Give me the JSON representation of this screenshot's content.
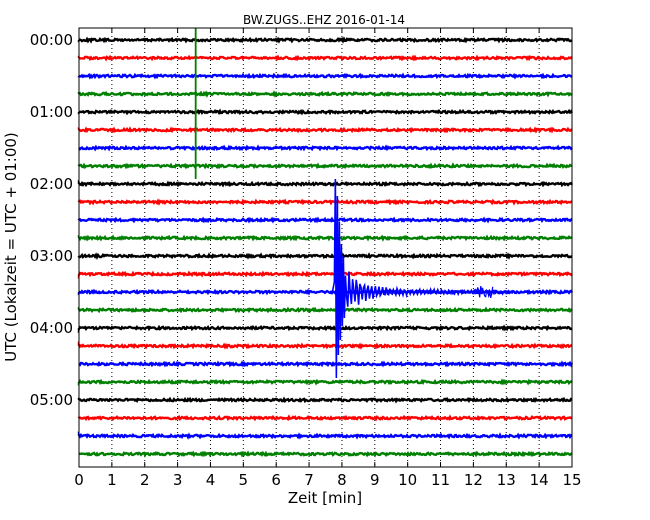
{
  "chart_data": {
    "type": "line",
    "title": "BW.ZUGS..EHZ 2016-01-14",
    "xlabel": "Zeit  [min]",
    "ylabel": "UTC (Lokalzeit = UTC + 01:00)",
    "xlim": [
      0,
      15
    ],
    "x_ticks": [
      "0",
      "1",
      "2",
      "3",
      "4",
      "5",
      "6",
      "7",
      "8",
      "9",
      "10",
      "11",
      "12",
      "13",
      "14",
      "15"
    ],
    "y_ticks": [
      "00:00",
      "01:00",
      "02:00",
      "03:00",
      "04:00",
      "05:00"
    ],
    "grid": "vertical dotted",
    "trace_interval_min": 15,
    "trace_count": 24,
    "trace_colors": [
      "#000000",
      "#ff0000",
      "#0000ff",
      "#008000"
    ],
    "events": [
      {
        "trace_index": 3,
        "time_min": 3.55,
        "description": "vertical spike spanning traces 00:45 to 02:00",
        "color": "#008000"
      },
      {
        "trace_index": 14,
        "time_min": 7.8,
        "description": "earthquake signal with decaying coda until about 13 min",
        "color": "#0000ff"
      }
    ]
  }
}
